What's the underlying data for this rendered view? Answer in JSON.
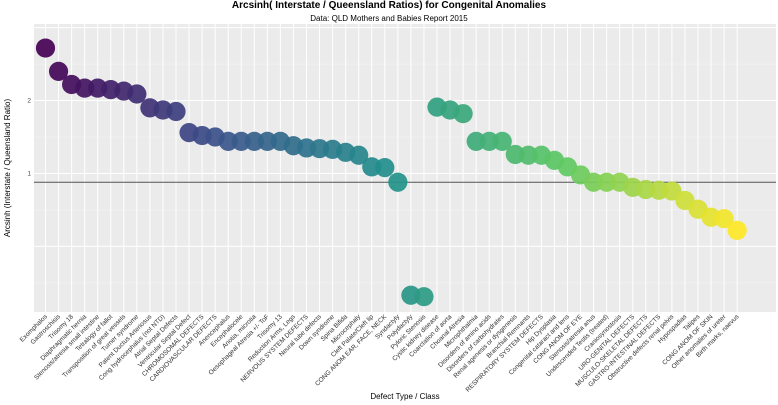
{
  "chart_data": {
    "type": "scatter",
    "title": "Arcsinh( Interstate / Queensland Ratios) for Congenital Anomalies",
    "subtitle": "Data: QLD Mothers and Babies Report 2015",
    "xlabel": "Defect Type / Class",
    "ylabel": "Arcsinh (Interstate / Queensland Ratio)",
    "ylim": [
      -0.9,
      3.05
    ],
    "yticks": [
      1,
      2
    ],
    "reference_line": 0.88,
    "categories": [
      "Exomphalos",
      "Gastroschisis",
      "Trisomy 18",
      "Diaphragmatic hernia",
      "Stenosis/atresia small intestine",
      "Tetralogy of fallot",
      "Transposition of great vessels",
      "Turner syndrome",
      "Patent Ductus Arteriosus",
      "Cong hydrocephalus (not NTD)",
      "Atrial Septal Defects",
      "Ventricular Septal Defect",
      "CHROMOSOMAL DEFECTS",
      "CARDIOVASCULAR DEFECTS",
      "Anencephalus",
      "Encephalocele",
      "Anotia, microtia",
      "Oesophageal Atresia +/- ToF",
      "Trisomy 13",
      "Reduction Arms, Legs",
      "NERVOUS SYSTEM DEFECTS",
      "Neural tube defects",
      "Down syndrome",
      "Spina Bifida",
      "Microcephaly",
      "Cleft Palate/Cleft lip",
      "CONG ANOM EAR, FACE, NECK",
      "Syndactyly",
      "Polydactyly",
      "Pyloric Stenosis",
      "Cystic kidney disease",
      "Coarctation of aorta",
      "Choanal Atresia",
      "Microphthalmia",
      "Disorders of amino acids",
      "Disorders of carbohydrates",
      "Renal agenesis or dysgenesis",
      "Branchial Remnants",
      "RESPIRATORY SYSTEM DEFECTS",
      "Hip Dysplasia",
      "Congenital cataract and lens",
      "CONG ANOM OF EYE",
      "Stenosis/atresia anus",
      "Undescended Testis (treated)",
      "Craniosynostosis",
      "URO-GENITAL DEFECTS",
      "MUSCULO-SKELETAL DEFECTS",
      "GASTRO-INTESTINAL DEFECTS",
      "Obstructive defects renal pelvis",
      "Hypospadias",
      "Talipes",
      "CONG ANOM OF SKIN",
      "Other anomalies of ureter",
      "Birth marks, naevus"
    ],
    "values": [
      2.72,
      2.4,
      2.22,
      2.17,
      2.17,
      2.15,
      2.13,
      2.09,
      1.9,
      1.87,
      1.85,
      1.56,
      1.52,
      1.5,
      1.44,
      1.44,
      1.44,
      1.44,
      1.44,
      1.38,
      1.35,
      1.34,
      1.33,
      1.29,
      1.25,
      1.09,
      1.08,
      0.88,
      -0.67,
      -0.69,
      1.91,
      1.87,
      1.82,
      1.44,
      1.44,
      1.44,
      1.26,
      1.25,
      1.25,
      1.18,
      1.09,
      0.98,
      0.88,
      0.88,
      0.88,
      0.81,
      0.78,
      0.77,
      0.76,
      0.63,
      0.51,
      0.4,
      0.38,
      0.22
    ],
    "color_scale": [
      "#440154",
      "#3b528b",
      "#21908c",
      "#5dc863",
      "#fde725"
    ]
  }
}
